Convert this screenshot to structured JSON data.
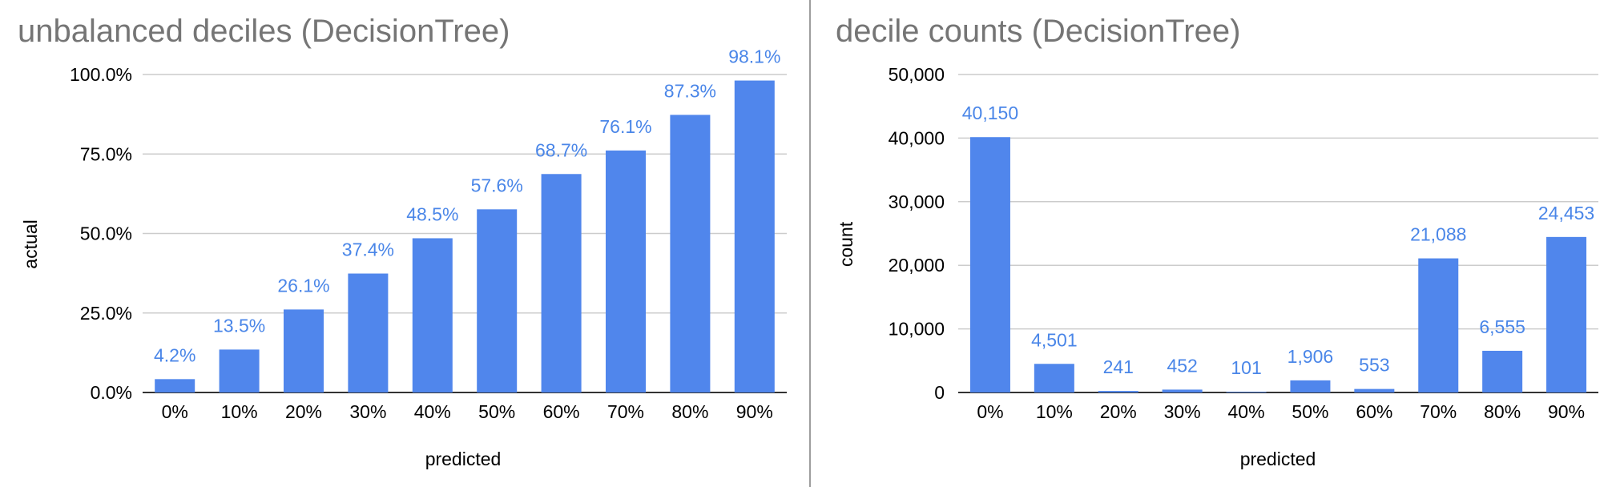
{
  "chart_data": [
    {
      "type": "bar",
      "title": "unbalanced deciles (DecisionTree)",
      "xlabel": "predicted",
      "ylabel": "actual",
      "categories": [
        "0%",
        "10%",
        "20%",
        "30%",
        "40%",
        "50%",
        "60%",
        "70%",
        "80%",
        "90%"
      ],
      "values": [
        4.2,
        13.5,
        26.1,
        37.4,
        48.5,
        57.6,
        68.7,
        76.1,
        87.3,
        98.1
      ],
      "data_labels": [
        "4.2%",
        "13.5%",
        "26.1%",
        "37.4%",
        "48.5%",
        "57.6%",
        "68.7%",
        "76.1%",
        "87.3%",
        "98.1%"
      ],
      "yticks": [
        "0.0%",
        "25.0%",
        "50.0%",
        "75.0%",
        "100.0%"
      ],
      "ytick_values": [
        0,
        25,
        50,
        75,
        100
      ],
      "ylim": [
        0,
        100
      ],
      "grid": true,
      "legend": "none",
      "bar_color": "#5086ec",
      "label_color": "#4a86e8"
    },
    {
      "type": "bar",
      "title": "decile counts (DecisionTree)",
      "xlabel": "predicted",
      "ylabel": "count",
      "categories": [
        "0%",
        "10%",
        "20%",
        "30%",
        "40%",
        "50%",
        "60%",
        "70%",
        "80%",
        "90%"
      ],
      "values": [
        40150,
        4501,
        241,
        452,
        101,
        1906,
        553,
        21088,
        6555,
        24453
      ],
      "data_labels": [
        "40,150",
        "4,501",
        "241",
        "452",
        "101",
        "1,906",
        "553",
        "21,088",
        "6,555",
        "24,453"
      ],
      "yticks": [
        "0",
        "10,000",
        "20,000",
        "30,000",
        "40,000",
        "50,000"
      ],
      "ytick_values": [
        0,
        10000,
        20000,
        30000,
        40000,
        50000
      ],
      "ylim": [
        0,
        50000
      ],
      "grid": true,
      "legend": "none",
      "bar_color": "#5086ec",
      "label_color": "#4a86e8"
    }
  ]
}
